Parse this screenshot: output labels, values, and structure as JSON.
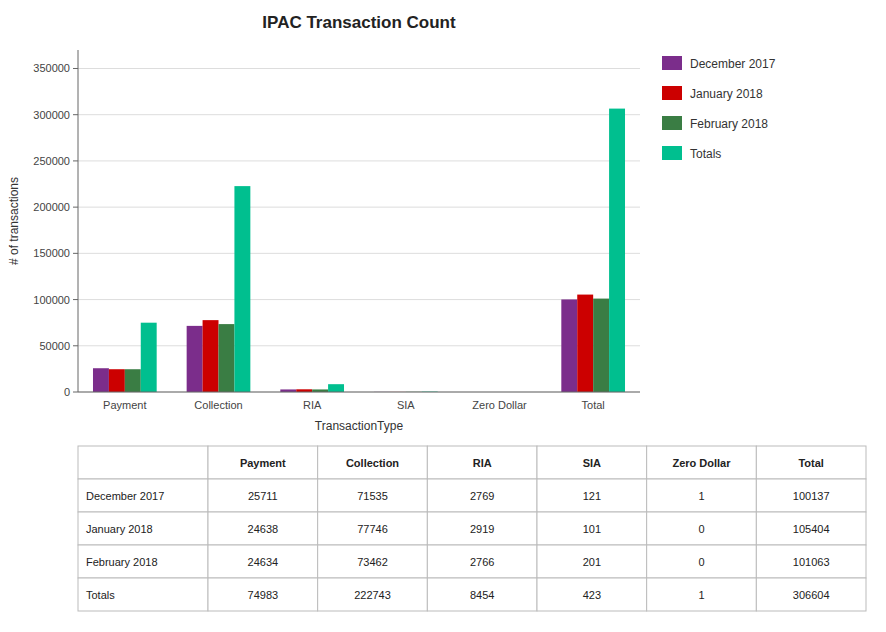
{
  "chart_data": {
    "type": "bar",
    "title": "IPAC Transaction  Count",
    "xlabel": "TransactionType",
    "ylabel": "# of transactions",
    "categories": [
      "Payment",
      "Collection",
      "RIA",
      "SIA",
      "Zero Dollar",
      "Total"
    ],
    "series": [
      {
        "name": "December 2017",
        "color": "#7B2D8B",
        "values": [
          25711,
          71535,
          2769,
          121,
          1,
          100137
        ]
      },
      {
        "name": "January 2018",
        "color": "#CC0000",
        "values": [
          24638,
          77746,
          2919,
          101,
          0,
          105404
        ]
      },
      {
        "name": "February 2018",
        "color": "#3A7D44",
        "values": [
          24634,
          73462,
          2766,
          201,
          0,
          101063
        ]
      },
      {
        "name": "Totals",
        "color": "#00BF8F",
        "values": [
          74983,
          222743,
          8454,
          423,
          1,
          306604
        ]
      }
    ],
    "ylim": [
      0,
      370000
    ],
    "yticks": [
      0,
      50000,
      100000,
      150000,
      200000,
      250000,
      300000,
      350000
    ],
    "grid": true,
    "legend": "right"
  }
}
